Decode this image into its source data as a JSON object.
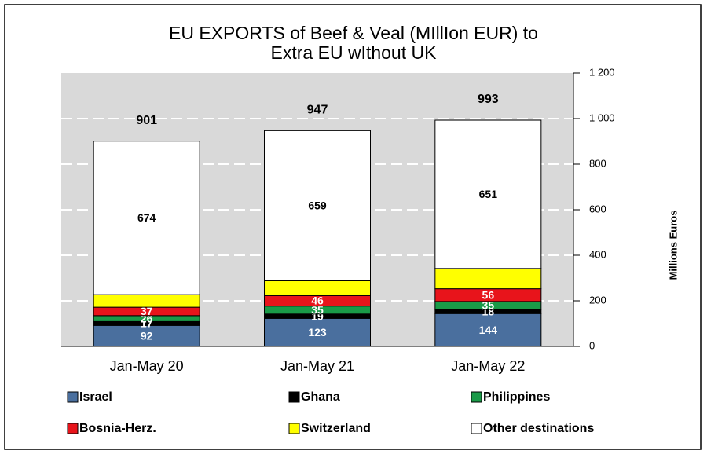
{
  "chart_data": {
    "type": "stacked_bar",
    "title": "EU EXPORTS of Beef & Veal (MIllIon EUR) to",
    "subtitle": "Extra EU wIthout UK",
    "y_label": "Millions Euros",
    "categories": [
      "Jan-May 20",
      "Jan-May 21",
      "Jan-May 22"
    ],
    "totals": [
      901,
      947,
      993
    ],
    "series": [
      {
        "name": "Israel",
        "color": "#4a6f9e",
        "values": [
          92,
          123,
          144
        ],
        "data_labels": true
      },
      {
        "name": "Ghana",
        "color": "#000000",
        "values": [
          17,
          19,
          18
        ],
        "data_labels": true
      },
      {
        "name": "Philippines",
        "color": "#1a9a48",
        "values": [
          26,
          35,
          35
        ],
        "data_labels": true
      },
      {
        "name": "Bosnia-Herz.",
        "color": "#e8141b",
        "values": [
          37,
          46,
          56
        ],
        "data_labels": true
      },
      {
        "name": "Switzerland",
        "color": "#ffff00",
        "values": [
          55,
          65,
          89
        ],
        "data_labels": false
      },
      {
        "name": "Other destinations",
        "color": "#ffffff",
        "values": [
          674,
          659,
          651
        ],
        "data_labels": true
      }
    ],
    "ylim": [
      0,
      1200
    ],
    "yticks": [
      0,
      200,
      400,
      600,
      800,
      {
        "value": 1000,
        "label": "1 000"
      },
      {
        "value": 1200,
        "label": "1 200"
      }
    ],
    "grid": true
  }
}
